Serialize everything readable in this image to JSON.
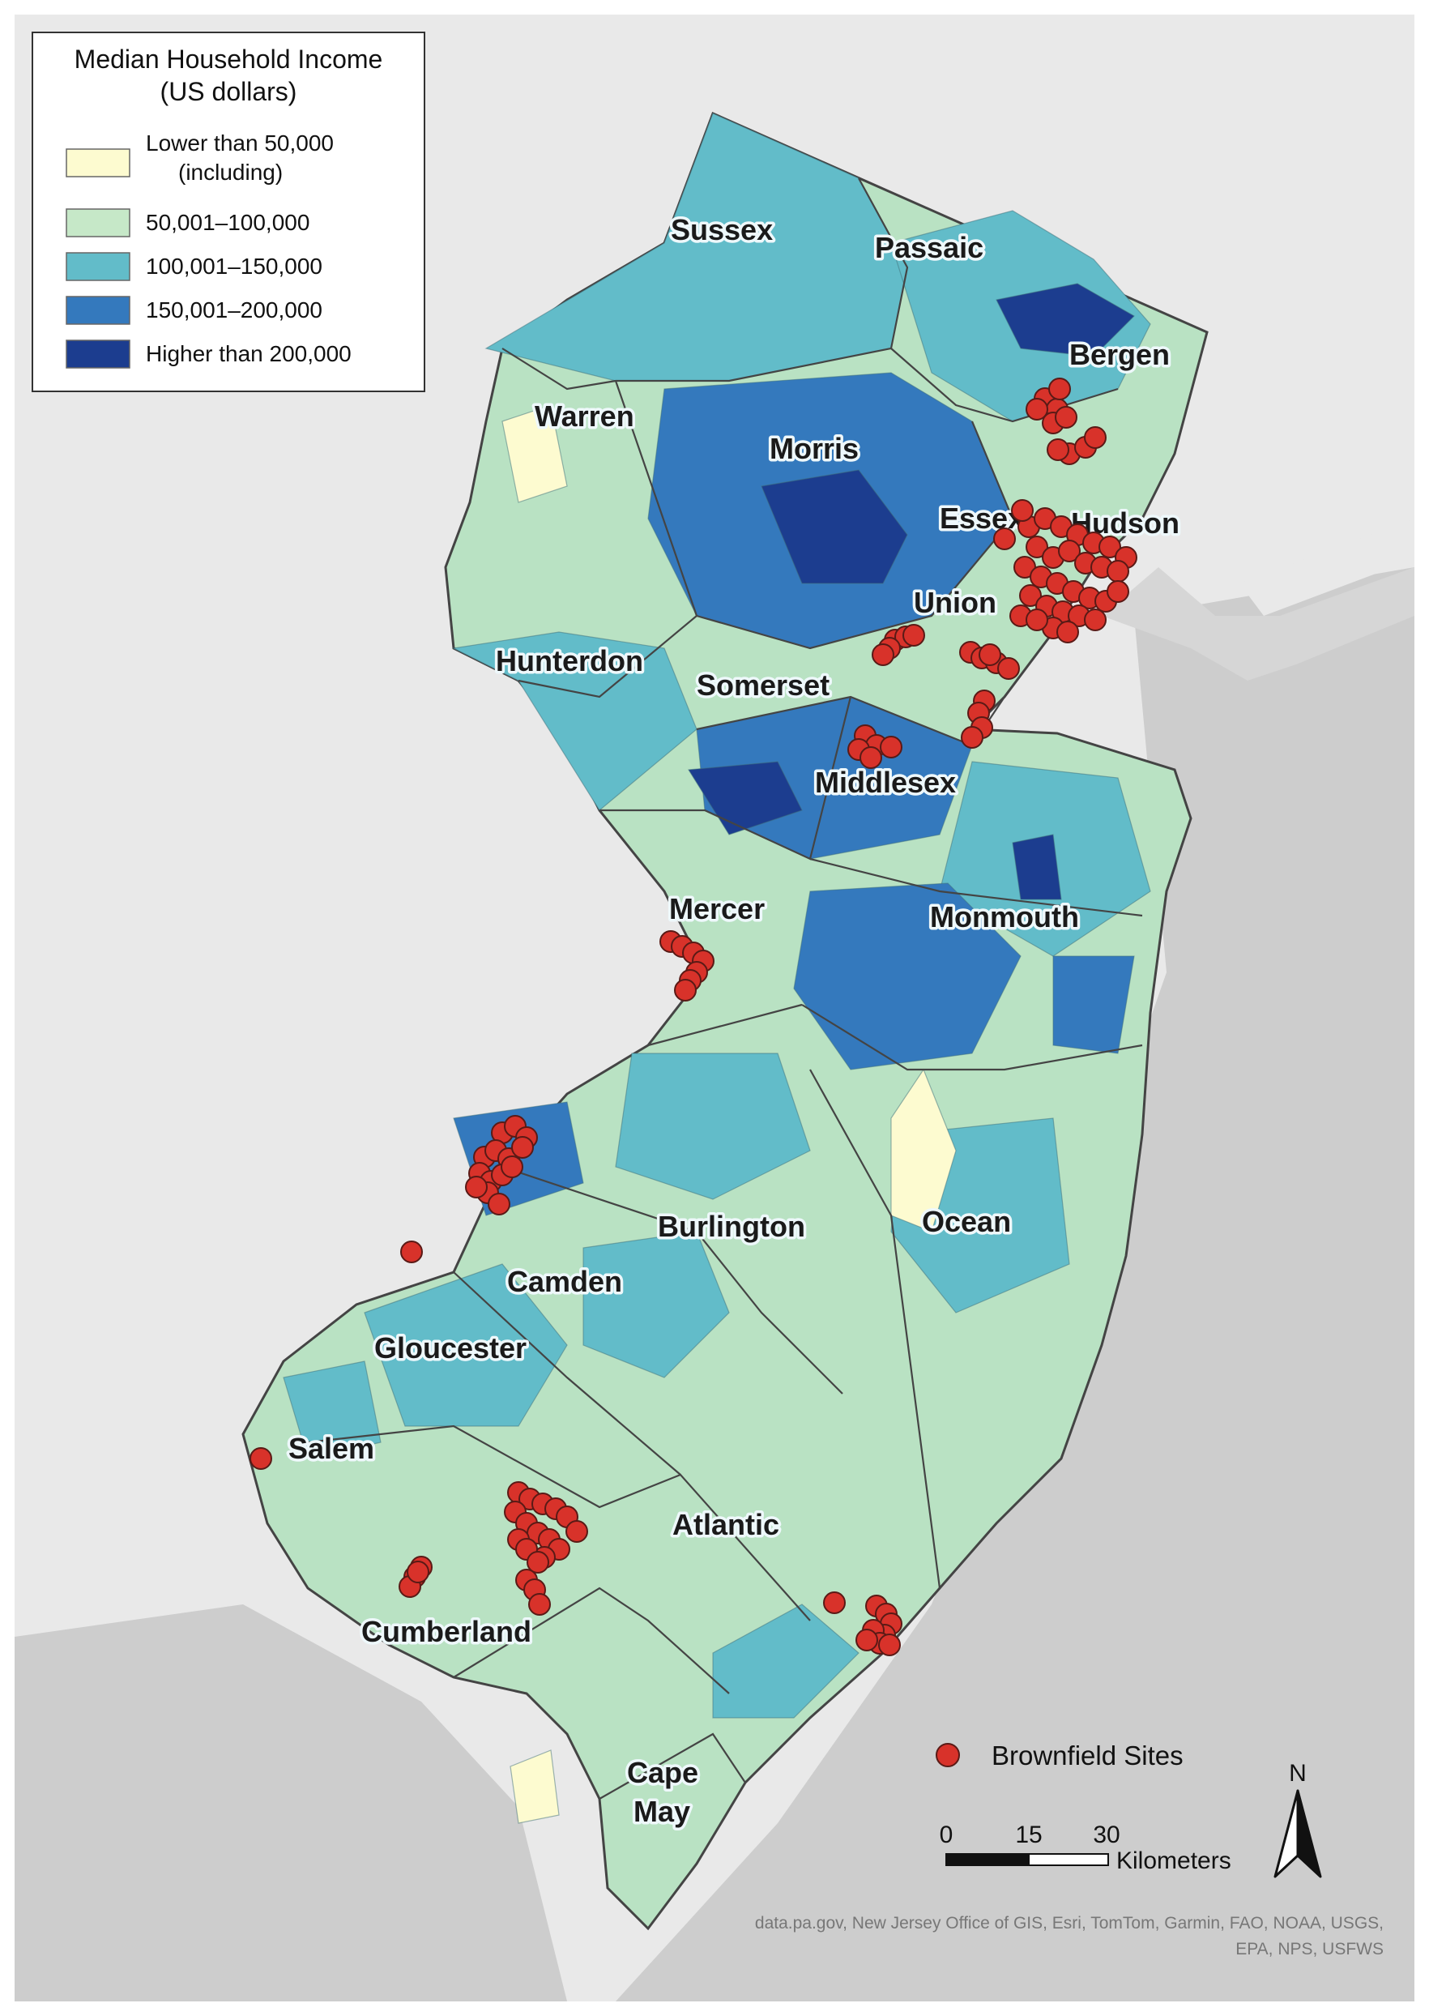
{
  "legend": {
    "title_line1": "Median Household Income",
    "title_line2": "(US dollars)",
    "items": [
      {
        "label_line1": "Lower than 50,000",
        "label_line2": "(including)",
        "color": "#fdfbd0"
      },
      {
        "label_line1": "50,001–100,000",
        "label_line2": "",
        "color": "#c6e8c8"
      },
      {
        "label_line1": "100,001–150,000",
        "label_line2": "",
        "color": "#62bcc9"
      },
      {
        "label_line1": "150,001–200,000",
        "label_line2": "",
        "color": "#3479bd"
      },
      {
        "label_line1": "Higher than 200,000",
        "label_line2": "",
        "color": "#1c3d8f"
      }
    ]
  },
  "counties": [
    "Sussex",
    "Passaic",
    "Bergen",
    "Warren",
    "Morris",
    "Essex",
    "Hudson",
    "Union",
    "Hunterdon",
    "Somerset",
    "Middlesex",
    "Mercer",
    "Monmouth",
    "Burlington",
    "Ocean",
    "Camden",
    "Gloucester",
    "Salem",
    "Atlantic",
    "Cumberland",
    "Cape",
    "May"
  ],
  "site_legend": {
    "label": "Brownfield Sites",
    "color": "#d8322a"
  },
  "scale": {
    "ticks": [
      "0",
      "15",
      "30"
    ],
    "unit": "Kilometers"
  },
  "north": "N",
  "attribution_line1": "data.pa.gov, New Jersey Office of GIS, Esri, TomTom, Garmin, FAO, NOAA, USGS,",
  "attribution_line2": "EPA, NPS, USFWS",
  "colors": {
    "ocean": "#cfcfcf",
    "land": "#e9e9e9",
    "site": "#d8322a"
  }
}
